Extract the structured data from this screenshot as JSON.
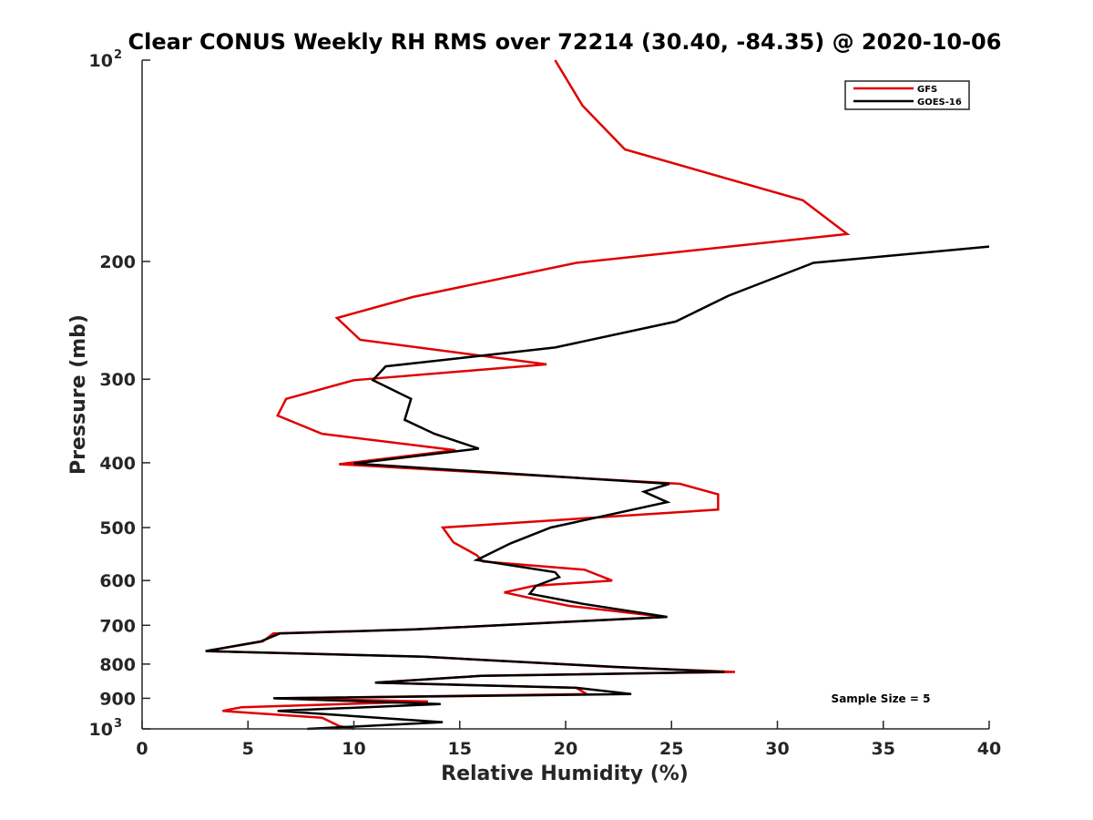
{
  "colors": {
    "gfs": "#e00000",
    "goes": "#000000",
    "axis": "#262626"
  },
  "chart_data": {
    "type": "line",
    "title": "Clear CONUS Weekly RH RMS over 72214 (30.40, -84.35) @ 2020-10-06",
    "xlabel": "Relative Humidity (%)",
    "ylabel": "Pressure (mb)",
    "xlim": [
      0,
      40
    ],
    "ylim": [
      100,
      1000
    ],
    "yscale": "log",
    "yreversed": true,
    "grid": false,
    "legend_position": "top-right",
    "xticks": [
      0,
      5,
      10,
      15,
      20,
      25,
      30,
      35,
      40
    ],
    "xtick_labels": [
      "0",
      "5",
      "10",
      "15",
      "20",
      "25",
      "30",
      "35",
      "40"
    ],
    "yticks": [
      100,
      200,
      300,
      400,
      500,
      600,
      700,
      800,
      900,
      1000
    ],
    "ytick_labels": [
      {
        "base": "10",
        "sup": "2"
      },
      {
        "base": "200",
        "sup": ""
      },
      {
        "base": "300",
        "sup": ""
      },
      {
        "base": "400",
        "sup": ""
      },
      {
        "base": "500",
        "sup": ""
      },
      {
        "base": "600",
        "sup": ""
      },
      {
        "base": "700",
        "sup": ""
      },
      {
        "base": "800",
        "sup": ""
      },
      {
        "base": "900",
        "sup": ""
      },
      {
        "base": "10",
        "sup": "3"
      }
    ],
    "annotation": "Sample Size = 5",
    "series": [
      {
        "name": "GFS",
        "color": "#e00000",
        "points": [
          [
            19.5,
            100
          ],
          [
            20.8,
            117
          ],
          [
            22.8,
            136
          ],
          [
            31.2,
            162
          ],
          [
            33.3,
            182
          ],
          [
            20.5,
            201
          ],
          [
            12.8,
            226
          ],
          [
            9.2,
            243
          ],
          [
            10.3,
            262
          ],
          [
            19.1,
            285
          ],
          [
            10.0,
            301
          ],
          [
            6.8,
            321
          ],
          [
            6.4,
            340
          ],
          [
            8.5,
            362
          ],
          [
            14.8,
            383
          ],
          [
            9.3,
            402
          ],
          [
            25.4,
            430
          ],
          [
            27.2,
            446
          ],
          [
            27.2,
            470
          ],
          [
            14.2,
            500
          ],
          [
            14.7,
            526
          ],
          [
            15.8,
            550
          ],
          [
            16.1,
            562
          ],
          [
            20.9,
            578
          ],
          [
            22.2,
            600
          ],
          [
            18.5,
            611
          ],
          [
            17.1,
            625
          ],
          [
            18.6,
            640
          ],
          [
            20.2,
            655
          ],
          [
            24.7,
            680
          ],
          [
            12.9,
            710
          ],
          [
            6.2,
            720
          ],
          [
            5.7,
            740
          ],
          [
            3.0,
            765
          ],
          [
            13.3,
            780
          ],
          [
            22.2,
            808
          ],
          [
            28.0,
            822
          ],
          [
            16.0,
            833
          ],
          [
            11.0,
            853
          ],
          [
            20.5,
            868
          ],
          [
            21.0,
            887
          ],
          [
            6.3,
            900
          ],
          [
            13.5,
            910
          ],
          [
            4.7,
            928
          ],
          [
            3.8,
            940
          ],
          [
            8.5,
            962
          ],
          [
            9.3,
            990
          ],
          [
            10.0,
            1000
          ]
        ]
      },
      {
        "name": "GOES-16",
        "color": "#000000",
        "points": [
          [
            40.0,
            190
          ],
          [
            31.7,
            201
          ],
          [
            27.7,
            225
          ],
          [
            25.2,
            246
          ],
          [
            19.5,
            269
          ],
          [
            11.5,
            287
          ],
          [
            10.9,
            301
          ],
          [
            12.7,
            321
          ],
          [
            12.4,
            345
          ],
          [
            13.8,
            362
          ],
          [
            15.9,
            381
          ],
          [
            10.0,
            401
          ],
          [
            24.9,
            430
          ],
          [
            23.7,
            442
          ],
          [
            24.8,
            458
          ],
          [
            19.3,
            500
          ],
          [
            17.4,
            528
          ],
          [
            15.8,
            559
          ],
          [
            19.5,
            583
          ],
          [
            19.7,
            593
          ],
          [
            18.6,
            611
          ],
          [
            18.3,
            628
          ],
          [
            20.8,
            650
          ],
          [
            24.8,
            680
          ],
          [
            12.9,
            710
          ],
          [
            6.5,
            720
          ],
          [
            5.6,
            740
          ],
          [
            3.0,
            765
          ],
          [
            13.3,
            780
          ],
          [
            22.4,
            808
          ],
          [
            27.5,
            822
          ],
          [
            16.0,
            833
          ],
          [
            11.0,
            853
          ],
          [
            20.5,
            868
          ],
          [
            23.1,
            887
          ],
          [
            6.2,
            900
          ],
          [
            14.1,
            918
          ],
          [
            6.4,
            940
          ],
          [
            14.2,
            977
          ],
          [
            7.8,
            1000
          ]
        ]
      }
    ]
  }
}
